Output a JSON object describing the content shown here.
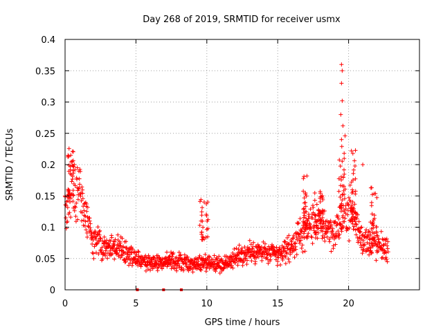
{
  "chart_data": {
    "type": "scatter",
    "title": "Day 268 of 2019, SRMTID for receiver usmx",
    "xlabel": "GPS time / hours",
    "ylabel": "SRMTID / TECUs",
    "xlim": [
      0,
      25
    ],
    "ylim": [
      0,
      0.4
    ],
    "xticks": [
      0,
      5,
      10,
      15,
      20
    ],
    "xtick_labels": [
      "0",
      "5",
      "10",
      "15",
      "20"
    ],
    "yticks": [
      0,
      0.05,
      0.1,
      0.15,
      0.2,
      0.25,
      0.3,
      0.35,
      0.4
    ],
    "ytick_labels": [
      "0",
      "0.05",
      "0.1",
      "0.15",
      "0.2",
      "0.25",
      "0.3",
      "0.35",
      "0.4"
    ],
    "grid": true,
    "marker": "+",
    "color": "#ff0000",
    "trend": {
      "hours": [
        0.0,
        0.5,
        1.0,
        1.5,
        2.0,
        3.0,
        4.0,
        5.0,
        6.0,
        7.0,
        8.0,
        9.0,
        10.0,
        11.0,
        12.0,
        13.0,
        14.0,
        15.0,
        16.0,
        17.0,
        18.0,
        19.0,
        20.0,
        21.0,
        22.0,
        22.8
      ],
      "srmtid": [
        0.13,
        0.16,
        0.15,
        0.12,
        0.08,
        0.07,
        0.065,
        0.05,
        0.045,
        0.045,
        0.045,
        0.04,
        0.045,
        0.04,
        0.05,
        0.06,
        0.06,
        0.055,
        0.07,
        0.1,
        0.11,
        0.09,
        0.13,
        0.08,
        0.07,
        0.065
      ]
    },
    "excursions": [
      {
        "hours": [
          0.2,
          0.6
        ],
        "srmtid": [
          0.15,
          0.235
        ]
      },
      {
        "hours": [
          9.5,
          10.1
        ],
        "srmtid": [
          0.08,
          0.145
        ]
      },
      {
        "hours": [
          16.8,
          17.1
        ],
        "srmtid": [
          0.1,
          0.19
        ]
      },
      {
        "hours": [
          17.6,
          18.2
        ],
        "srmtid": [
          0.09,
          0.165
        ]
      },
      {
        "hours": [
          19.3,
          19.7
        ],
        "srmtid": [
          0.13,
          0.245
        ]
      },
      {
        "hours": [
          20.2,
          20.5
        ],
        "srmtid": [
          0.12,
          0.225
        ]
      },
      {
        "hours": [
          21.5,
          22.0
        ],
        "srmtid": [
          0.08,
          0.18
        ]
      }
    ],
    "outliers": [
      {
        "x": 19.5,
        "y": 0.36
      },
      {
        "x": 19.55,
        "y": 0.35
      },
      {
        "x": 19.5,
        "y": 0.33
      },
      {
        "x": 19.55,
        "y": 0.302
      },
      {
        "x": 19.45,
        "y": 0.28
      },
      {
        "x": 19.6,
        "y": 0.262
      },
      {
        "x": 19.5,
        "y": 0.24
      },
      {
        "x": 19.75,
        "y": 0.246
      },
      {
        "x": 20.2,
        "y": 0.222
      },
      {
        "x": 21.0,
        "y": 0.2
      }
    ],
    "zero_points": [
      5.1,
      6.95,
      8.2
    ]
  }
}
